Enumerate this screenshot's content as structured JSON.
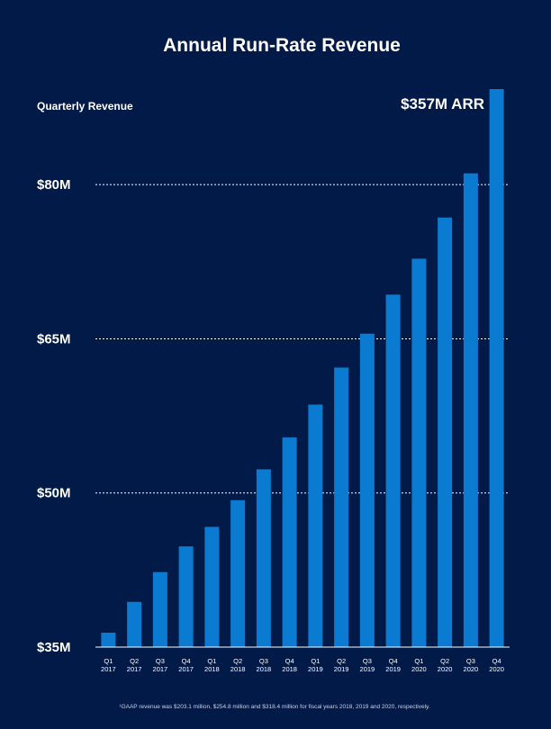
{
  "chart_data": {
    "type": "bar",
    "title": "Annual Run-Rate Revenue",
    "subtitle": "Quarterly Revenue",
    "annotation": "$357M ARR",
    "footnote": "¹GAAP revenue was $203.1 million, $254.8 million and $318.4 million for fiscal years 2018, 2019 and 2020, respectively.",
    "bar_color": "#0a7bd0",
    "background_color": "#021a48",
    "ylim": [
      35,
      90
    ],
    "grid": true,
    "yticks": [
      {
        "value": 35,
        "label": "$35M"
      },
      {
        "value": 50,
        "label": "$50M"
      },
      {
        "value": 65,
        "label": "$65M"
      },
      {
        "value": 80,
        "label": "$80M"
      }
    ],
    "categories": [
      [
        "Q1",
        "2017"
      ],
      [
        "Q2",
        "2017"
      ],
      [
        "Q3",
        "2017"
      ],
      [
        "Q4",
        "2017"
      ],
      [
        "Q1",
        "2018"
      ],
      [
        "Q2",
        "2018"
      ],
      [
        "Q3",
        "2018"
      ],
      [
        "Q4",
        "2018"
      ],
      [
        "Q1",
        "2019"
      ],
      [
        "Q2",
        "2019"
      ],
      [
        "Q3",
        "2019"
      ],
      [
        "Q4",
        "2019"
      ],
      [
        "Q1",
        "2020"
      ],
      [
        "Q2",
        "2020"
      ],
      [
        "Q3",
        "2020"
      ],
      [
        "Q4",
        "2020"
      ]
    ],
    "values": [
      36.4,
      39.4,
      42.3,
      44.8,
      46.7,
      49.3,
      52.3,
      55.4,
      58.6,
      62.2,
      65.5,
      69.3,
      72.8,
      76.8,
      81.1,
      89.3
    ]
  }
}
